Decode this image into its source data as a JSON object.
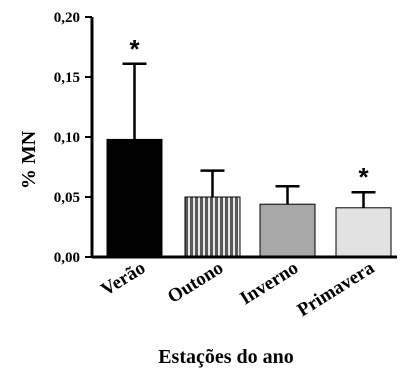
{
  "chart_data": {
    "type": "bar",
    "categories": [
      "Verão",
      "Outono",
      "Inverno",
      "Primavera"
    ],
    "values": [
      0.098,
      0.05,
      0.044,
      0.041
    ],
    "error_upper": [
      0.161,
      0.072,
      0.059,
      0.054
    ],
    "annotations": [
      "*",
      "",
      "",
      "*"
    ],
    "bar_colors": [
      "#000000",
      "#6e6e6e",
      "#a8a8a8",
      "#e2e2e2"
    ],
    "bar_patterns": [
      "solid",
      "vertical-stripes",
      "solid",
      "solid"
    ],
    "ylabel": "% MN",
    "xlabel": "Estações do ano",
    "ylim": [
      0,
      0.2
    ],
    "yticks": [
      "0,00",
      "0,05",
      "0,10",
      "0,15",
      "0,20"
    ],
    "grid": false
  }
}
